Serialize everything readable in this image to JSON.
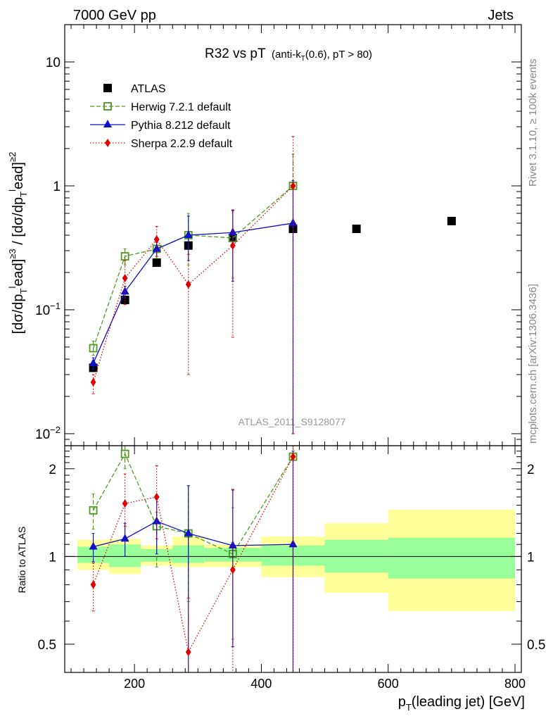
{
  "header": {
    "left": "7000 GeV pp",
    "right": "Jets"
  },
  "side": {
    "rivet": "Rivet 3.1.10, ≥ 100k events",
    "mcplots": "mcplots.cern.ch [arXiv:1306.3436]"
  },
  "chart_data": {
    "type": "scatter",
    "title_main": "R32 vs pT",
    "title_detail": "(anti-k",
    "title_detail_sub": "T",
    "title_detail_rest": "(0.6), pT > 80)",
    "watermark": "ATLAS_2011_S9128077",
    "ylabel": "[dσ/dp_T^lead]^≥3 / [dσ/dp_T^lead]^≥2",
    "ylabel_ratio": "Ratio to ATLAS",
    "xlabel": "p_T(leading jet) [GeV]",
    "x_ticks": [
      "200",
      "400",
      "600",
      "800"
    ],
    "y_ticks_main": [
      "10^-2",
      "10^-1",
      "1",
      "10"
    ],
    "y_ticks_ratio": [
      "0.5",
      "1",
      "2"
    ],
    "xlim": [
      90,
      810
    ],
    "ylim_main": [
      0.008,
      20
    ],
    "ylim_ratio": [
      0.4,
      2.4
    ],
    "yscale_main": "log",
    "yscale_ratio": "log",
    "x_bins": [
      110,
      160,
      210,
      260,
      310,
      400,
      500,
      600,
      800
    ],
    "x_centers": [
      135,
      185,
      235,
      285,
      355,
      450,
      550,
      700
    ],
    "bands": {
      "stat": [
        [
          0.95,
          1.08
        ],
        [
          0.92,
          1.1
        ],
        [
          0.96,
          1.06
        ],
        [
          0.95,
          1.09
        ],
        [
          0.96,
          1.07
        ],
        [
          0.93,
          1.09
        ],
        [
          0.88,
          1.14
        ],
        [
          0.84,
          1.16
        ]
      ],
      "total": [
        [
          0.9,
          1.14
        ],
        [
          0.87,
          1.15
        ],
        [
          0.93,
          1.09
        ],
        [
          0.92,
          1.17
        ],
        [
          0.92,
          1.1
        ],
        [
          0.85,
          1.17
        ],
        [
          0.75,
          1.3
        ],
        [
          0.65,
          1.45
        ]
      ]
    },
    "legend": {
      "position": "top-left",
      "entries": [
        "ATLAS",
        "Herwig 7.2.1 default",
        "Pythia 8.212 default",
        "Sherpa 2.2.9 default"
      ]
    },
    "series": [
      {
        "name": "ATLAS",
        "color": "#000000",
        "marker": "square",
        "x": [
          135,
          185,
          235,
          285,
          355,
          450,
          550,
          700
        ],
        "y": [
          0.034,
          0.12,
          0.24,
          0.33,
          0.38,
          0.45,
          0.45,
          0.52
        ],
        "yerr_up": [
          0.002,
          0.004,
          0.006,
          0.008,
          0.01,
          0.012,
          0.012,
          0.015
        ],
        "yerr_down": [
          0.002,
          0.004,
          0.006,
          0.008,
          0.01,
          0.012,
          0.012,
          0.015
        ]
      },
      {
        "name": "Herwig 7.2.1 default",
        "color": "#4d9a1e",
        "marker": "open-square",
        "dash": "6,3",
        "x": [
          135,
          185,
          235,
          285,
          355,
          450
        ],
        "y": [
          0.049,
          0.27,
          0.31,
          0.4,
          0.38,
          1.0
        ],
        "yerr_up": [
          0.007,
          0.04,
          0.04,
          0.2,
          0.25,
          0.8
        ],
        "yerr_down": [
          0.006,
          0.04,
          0.05,
          0.17,
          0.2,
          0.99
        ],
        "ratio": [
          1.44,
          2.25,
          1.27,
          1.2,
          1.02,
          2.2
        ],
        "ratio_err_up": [
          0.2,
          0.2,
          0.15,
          0.55,
          0.45,
          1.0
        ],
        "ratio_err_down": [
          0.2,
          0.25,
          0.35,
          0.5,
          0.5,
          2.0
        ]
      },
      {
        "name": "Pythia 8.212 default",
        "color": "#1010c8",
        "marker": "triangle",
        "dash": "",
        "x": [
          135,
          185,
          235,
          285,
          355,
          450
        ],
        "y": [
          0.037,
          0.14,
          0.31,
          0.4,
          0.42,
          0.5
        ],
        "yerr_up": [
          0.004,
          0.015,
          0.04,
          0.17,
          0.22,
          0.6
        ],
        "yerr_down": [
          0.004,
          0.015,
          0.04,
          0.15,
          0.25,
          0.49
        ],
        "ratio": [
          1.08,
          1.15,
          1.32,
          1.2,
          1.09,
          1.1
        ],
        "ratio_err_up": [
          0.12,
          0.15,
          0.3,
          0.55,
          0.6,
          1.2
        ],
        "ratio_err_down": [
          0.12,
          0.15,
          0.3,
          0.8,
          0.6,
          1.0
        ]
      },
      {
        "name": "Sherpa 2.2.9 default",
        "color": "#e00000",
        "marker": "diamond",
        "dash": "1.5,2.5",
        "x": [
          135,
          185,
          235,
          285,
          355,
          450
        ],
        "y": [
          0.026,
          0.18,
          0.37,
          0.16,
          0.33,
          1.0
        ],
        "yerr_up": [
          0.004,
          0.07,
          0.1,
          0.12,
          0.3,
          1.5
        ],
        "yerr_down": [
          0.005,
          0.07,
          0.1,
          0.13,
          0.27,
          0.99
        ],
        "ratio": [
          0.8,
          1.52,
          1.6,
          0.47,
          0.9,
          2.2
        ],
        "ratio_err_up": [
          0.15,
          0.4,
          0.45,
          0.25,
          0.8,
          1.0
        ],
        "ratio_err_down": [
          0.15,
          0.25,
          0.45,
          0.1,
          0.5,
          2.0
        ]
      }
    ]
  }
}
